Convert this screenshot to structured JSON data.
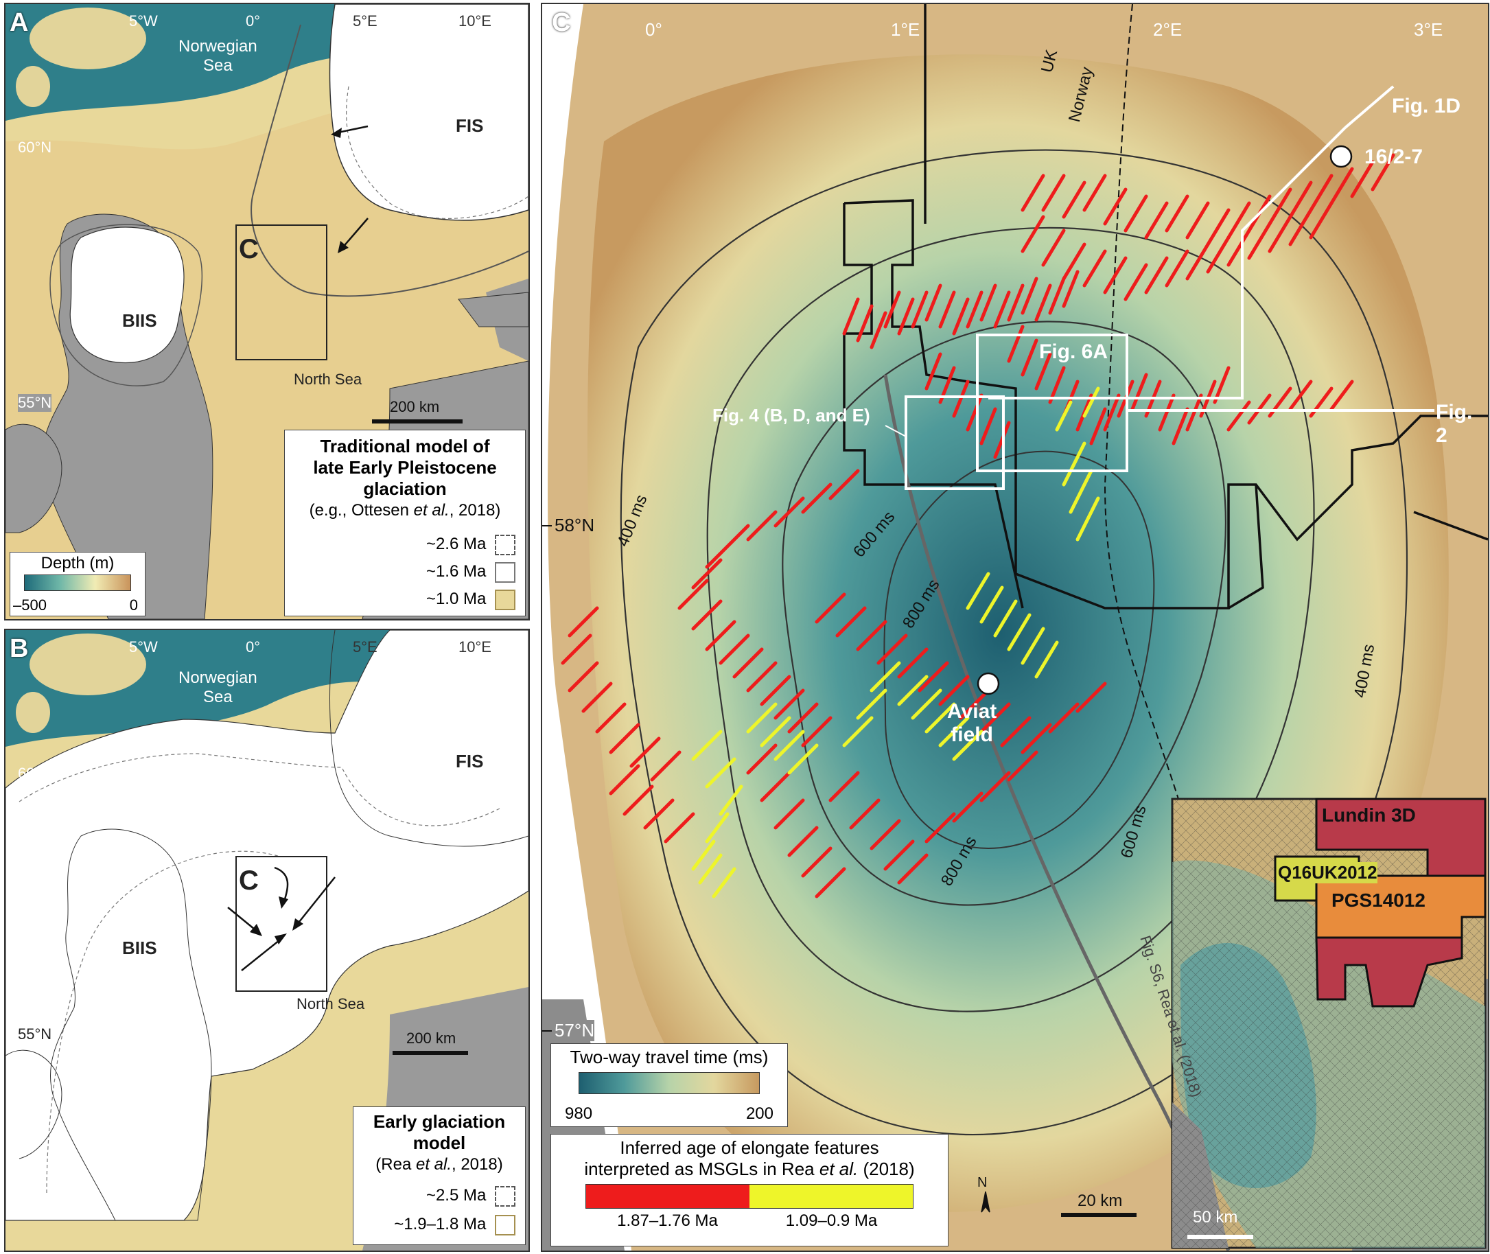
{
  "panel_a": {
    "letter": "A",
    "lon_labels": [
      "5°W",
      "0°",
      "5°E",
      "10°E"
    ],
    "lat_labels": [
      "60°N",
      "55°N"
    ],
    "sea_labels": {
      "norwegian": [
        "Norwegian",
        "Sea"
      ],
      "north": "North Sea"
    },
    "ice_labels": {
      "biis": "BIIS",
      "fis": "FIS",
      "box": "C"
    },
    "scalebar": "200 km",
    "depth_legend": {
      "title": "Depth (m)",
      "min": "–500",
      "max": "0"
    },
    "legend": {
      "title_lines": [
        "Traditional model of",
        "late Early Pleistocene",
        "glaciation"
      ],
      "citation": {
        "prefix": "(e.g., Ottesen ",
        "italic": "et al.",
        "suffix": ", 2018)"
      },
      "items": [
        "~2.6 Ma",
        "~1.6 Ma",
        "~1.0 Ma"
      ]
    }
  },
  "panel_b": {
    "letter": "B",
    "lon_labels": [
      "5°W",
      "0°",
      "5°E",
      "10°E"
    ],
    "lat_labels": [
      "60°N",
      "55°N"
    ],
    "sea_labels": {
      "norwegian": [
        "Norwegian",
        "Sea"
      ],
      "north": "North Sea"
    },
    "ice_labels": {
      "biis": "BIIS",
      "fis": "FIS",
      "box": "C"
    },
    "scalebar": "200 km",
    "legend": {
      "title_lines": [
        "Early glaciation",
        "model"
      ],
      "citation": {
        "prefix": "(Rea ",
        "italic": "et al.",
        "suffix": ", 2018)"
      },
      "items": [
        "~2.5 Ma",
        "~1.9–1.8 Ma"
      ]
    }
  },
  "panel_c": {
    "letter": "C",
    "lon_labels": [
      "0°",
      "1°E",
      "2°E",
      "3°E"
    ],
    "lat_labels": [
      "58°N",
      "57°N"
    ],
    "border_labels": [
      "UK",
      "Norway"
    ],
    "contour_labels": [
      "400 ms",
      "600 ms",
      "800 ms",
      "800 ms",
      "600 ms",
      "400 ms"
    ],
    "fig_labels": {
      "fig1d": "Fig. 1D",
      "fig6a": "Fig. 6A",
      "fig4": "Fig. 4 (B, D, and E)",
      "fig2": "Fig. 2",
      "figs6": "Fig. S6, Rea et al. (2018)"
    },
    "wells": {
      "well": "16/2-7",
      "aviat": [
        "Aviat",
        "field"
      ]
    },
    "north_arrow": "N",
    "scalebar": "20 km",
    "twt_legend": {
      "title": "Two-way travel time (ms)",
      "min": "980",
      "max": "200"
    },
    "msgl_legend": {
      "line1": "Inferred age of elongate features",
      "line2_prefix": "interpreted as MSGLs in Rea ",
      "line2_italic": "et al.",
      "line2_suffix": " (2018)",
      "items": [
        {
          "label": "1.87–1.76 Ma",
          "color": "#ee1c1c"
        },
        {
          "label": "1.09–0.9 Ma",
          "color": "#eef52a"
        }
      ]
    },
    "inset": {
      "surveys": [
        "Lundin 3D",
        "Q16UK2012",
        "PGS14012"
      ],
      "scalebar": "50 km",
      "colors": {
        "lundin": "#b83a4a",
        "q16": "#d6d94a",
        "pgs": "#e88c3c"
      }
    }
  }
}
